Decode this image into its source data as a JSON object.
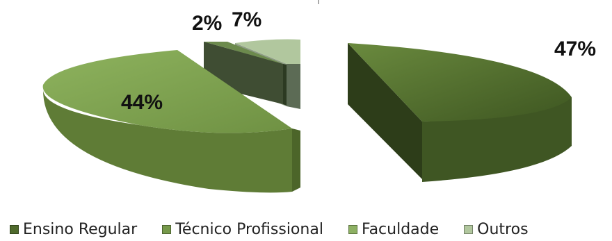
{
  "chart_data": {
    "type": "pie",
    "style": "3d-exploded",
    "title": "",
    "slices": [
      {
        "label": "Ensino Regular",
        "value": 47,
        "display": "47%",
        "color": "#4f6a2c"
      },
      {
        "label": "Técnico Profissional",
        "value": 44,
        "display": "44%",
        "color": "#76994a"
      },
      {
        "label": "Faculdade",
        "value": 2,
        "display": "2%",
        "color": "#5d7a42"
      },
      {
        "label": "Outros",
        "value": 7,
        "display": "7%",
        "color": "#b1c79e"
      }
    ],
    "legend_position": "bottom"
  }
}
